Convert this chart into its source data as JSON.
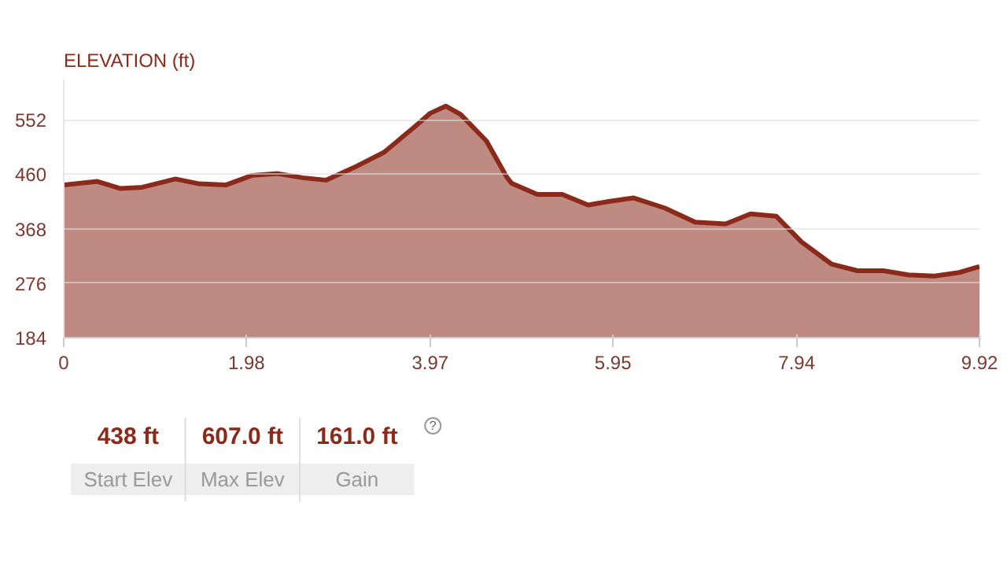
{
  "chart_data": {
    "type": "area",
    "title": "ELEVATION (ft)",
    "x": [
      0,
      0.36,
      0.61,
      0.85,
      1.21,
      1.46,
      1.76,
      2.04,
      2.32,
      2.59,
      2.84,
      3.14,
      3.47,
      3.8,
      3.97,
      4.14,
      4.3,
      4.58,
      4.8,
      4.85,
      5.13,
      5.4,
      5.68,
      5.9,
      6.17,
      6.51,
      6.84,
      7.17,
      7.44,
      7.72,
      7.99,
      8.32,
      8.6,
      8.88,
      9.15,
      9.43,
      9.7,
      9.92
    ],
    "series": [
      {
        "color": "#8b2a1a",
        "values": [
          442,
          448,
          436,
          438,
          452,
          444,
          442,
          458,
          461,
          454,
          450,
          471,
          497,
          540,
          563,
          575,
          561,
          516,
          455,
          445,
          426,
          426,
          408,
          414,
          420,
          403,
          379,
          376,
          393,
          389,
          346,
          308,
          297,
          297,
          290,
          288,
          294,
          304
        ]
      }
    ],
    "xlim": [
      0,
      9.92
    ],
    "ylim": [
      184,
      620
    ],
    "xticks": [
      0,
      1.98,
      3.97,
      5.95,
      7.94,
      {
        "value": 9.92,
        "label": "9.92"
      }
    ],
    "yticks": [
      184,
      276,
      368,
      460,
      552
    ],
    "grid": "y",
    "marker": "none",
    "line_style": "solid",
    "annotations": [
      "438 ft",
      "Start Elev",
      "607.0 ft",
      "Max Elev",
      "161.0 ft",
      "Gain",
      "?"
    ]
  }
}
